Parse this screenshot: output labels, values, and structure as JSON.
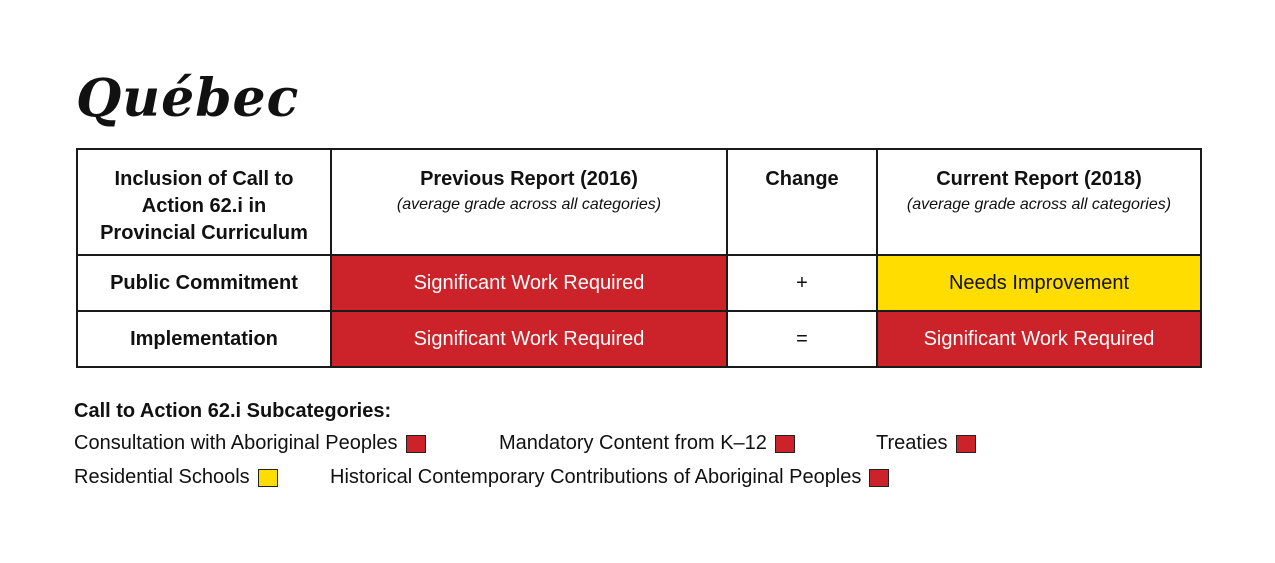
{
  "title": "Québec",
  "colors": {
    "red": "#cc2229",
    "yellow": "#ffdd00"
  },
  "table": {
    "headers": {
      "col1": "Inclusion of Call to Action 62.i in Provincial Curriculum",
      "col2_title": "Previous Report (2016)",
      "col2_sub": "(average grade across all categories)",
      "col3": "Change",
      "col4_title": "Current Report (2018)",
      "col4_sub": "(average grade across all categories)"
    },
    "rows": [
      {
        "label": "Public Commitment",
        "previous": "Significant Work Required",
        "previous_color": "red",
        "change": "+",
        "current": "Needs Improvement",
        "current_color": "yellow"
      },
      {
        "label": "Implementation",
        "previous": "Significant Work Required",
        "previous_color": "red",
        "change": "=",
        "current": "Significant Work Required",
        "current_color": "red"
      }
    ]
  },
  "legend": {
    "title": "Call to Action 62.i Subcategories:",
    "items": [
      {
        "label": "Consultation with Aboriginal Peoples",
        "color": "red"
      },
      {
        "label": "Mandatory Content from K–12",
        "color": "red"
      },
      {
        "label": "Treaties",
        "color": "red"
      },
      {
        "label": "Residential Schools",
        "color": "yellow"
      },
      {
        "label": "Historical Contemporary Contributions of Aboriginal Peoples",
        "color": "red"
      }
    ]
  }
}
